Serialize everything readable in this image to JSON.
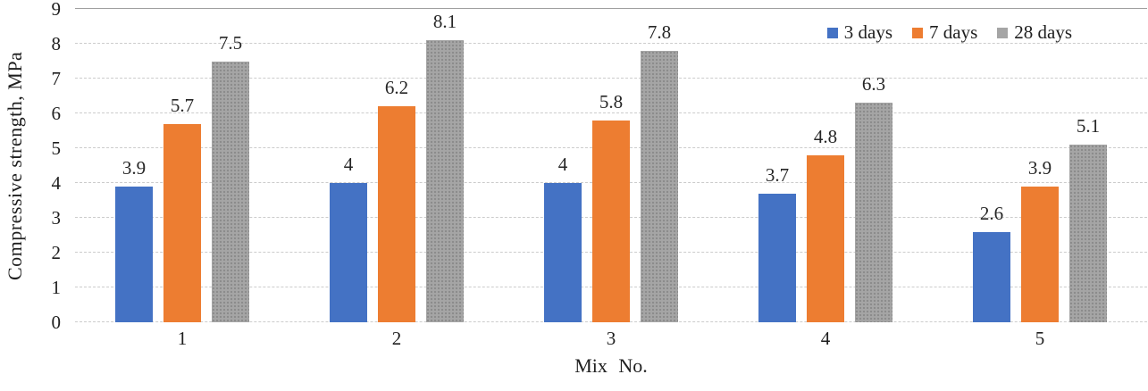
{
  "chart_data": {
    "type": "bar",
    "title": "",
    "categories": [
      "1",
      "2",
      "3",
      "4",
      "5"
    ],
    "series": [
      {
        "name": "3 days",
        "color": "#4472C4",
        "pattern": "solid",
        "values": [
          3.9,
          4,
          4,
          3.7,
          2.6
        ],
        "labels": [
          "3.9",
          "4",
          "4",
          "3.7",
          "2.6"
        ]
      },
      {
        "name": "7 days",
        "color": "#ED7D31",
        "pattern": "solid",
        "values": [
          5.7,
          6.2,
          5.8,
          4.8,
          3.9
        ],
        "labels": [
          "5.7",
          "6.2",
          "5.8",
          "4.8",
          "3.9"
        ]
      },
      {
        "name": "28 days",
        "color": "#A5A5A5",
        "pattern": "dots",
        "values": [
          7.5,
          8.1,
          7.8,
          6.3,
          5.1
        ],
        "labels": [
          "7.5",
          "8.1",
          "7.8",
          "6.3",
          "5.1"
        ]
      }
    ],
    "xlabel": "Mix No.",
    "ylabel": "Compressive strength, MPa",
    "ylim": [
      0,
      9
    ],
    "yticks": [
      "0",
      "1",
      "2",
      "3",
      "4",
      "5",
      "6",
      "7",
      "8",
      "9"
    ],
    "grid": "horizontal-dashed",
    "legend_position": "top-right",
    "colors": {
      "gridline": "#cccccc",
      "gridline_top": "#a0a0a0",
      "text": "#1f1f1f",
      "background": "#ffffff"
    }
  }
}
